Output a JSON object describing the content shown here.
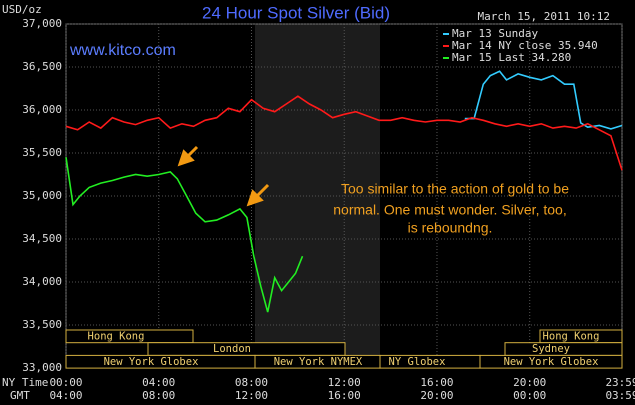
{
  "chart_data": {
    "type": "line",
    "title": "24 Hour Spot Silver (Bid)",
    "y_unit": "USD/oz",
    "timestamp": "March 15, 2011 10:12",
    "site": "www.kitco.com",
    "annotation": [
      "Too similar to the action of gold to be",
      "normal. One must wonder. Silver, too,",
      "is reboundng."
    ],
    "x_label": "NY Time",
    "x2_label": "GMT",
    "xlim": [
      0,
      23.98
    ],
    "xticks": [
      {
        "value": 0,
        "label": "00:00"
      },
      {
        "value": 4,
        "label": "04:00"
      },
      {
        "value": 8,
        "label": "08:00"
      },
      {
        "value": 12,
        "label": "12:00"
      },
      {
        "value": 16,
        "label": "16:00"
      },
      {
        "value": 20,
        "label": "20:00"
      },
      {
        "value": 23.98,
        "label": "23:59"
      }
    ],
    "x2ticks": [
      "04:00",
      "08:00",
      "12:00",
      "16:00",
      "20:00",
      "00:00",
      "03:59"
    ],
    "ylim": [
      33000,
      37000
    ],
    "yticks": [
      {
        "value": 33000,
        "label": "33,000"
      },
      {
        "value": 33500,
        "label": "33,500"
      },
      {
        "value": 34000,
        "label": "34,000"
      },
      {
        "value": 34500,
        "label": "34,500"
      },
      {
        "value": 35000,
        "label": "35,000"
      },
      {
        "value": 35500,
        "label": "35,500"
      },
      {
        "value": 36000,
        "label": "36,000"
      },
      {
        "value": 36500,
        "label": "36,500"
      },
      {
        "value": 37000,
        "label": "37,000"
      }
    ],
    "grid": true,
    "sessions": [
      "Hong Kong",
      "London",
      "New York Globex",
      "New York NYMEX",
      "NY Globex",
      "Hong Kong",
      "Sydney",
      "New York Globex"
    ],
    "series": [
      {
        "name": "Mar 13 Sunday",
        "color": "#33ccff",
        "x": [
          17.2,
          17.6,
          18,
          18.3,
          18.7,
          19,
          19.5,
          20,
          20.5,
          21,
          21.5,
          21.9,
          22.2,
          22.5,
          23,
          23.5,
          23.98
        ],
        "values": [
          35900,
          35900,
          36300,
          36400,
          36450,
          36350,
          36420,
          36380,
          36350,
          36400,
          36300,
          36300,
          35850,
          35800,
          35820,
          35780,
          35820
        ]
      },
      {
        "name": "Mar 14 NY close 35.940",
        "color": "#ff1a1a",
        "x": [
          0,
          0.5,
          1,
          1.5,
          2,
          2.5,
          3,
          3.5,
          4,
          4.5,
          5,
          5.5,
          6,
          6.5,
          7,
          7.5,
          8,
          8.5,
          9,
          9.5,
          10,
          10.5,
          11,
          11.5,
          12,
          12.5,
          13,
          13.5,
          14,
          14.5,
          15,
          15.5,
          16,
          16.5,
          17,
          17.5,
          18,
          18.5,
          19,
          19.5,
          20,
          20.5,
          21,
          21.5,
          22,
          22.5,
          23,
          23.5,
          23.98
        ],
        "values": [
          35810,
          35770,
          35860,
          35790,
          35910,
          35860,
          35830,
          35880,
          35910,
          35790,
          35840,
          35810,
          35880,
          35910,
          36020,
          35980,
          36120,
          36020,
          35980,
          36070,
          36160,
          36070,
          36000,
          35910,
          35950,
          35980,
          35930,
          35880,
          35880,
          35910,
          35880,
          35860,
          35880,
          35880,
          35860,
          35910,
          35880,
          35840,
          35810,
          35840,
          35810,
          35840,
          35790,
          35810,
          35790,
          35840,
          35770,
          35700,
          35300
        ]
      },
      {
        "name": "Mar 15 Last 34.280",
        "color": "#22ee22",
        "x": [
          0,
          0.3,
          0.6,
          1,
          1.5,
          2,
          2.5,
          3,
          3.5,
          4,
          4.5,
          4.8,
          5.2,
          5.6,
          6,
          6.5,
          7,
          7.5,
          7.8,
          8.1,
          8.4,
          8.7,
          9,
          9.3,
          9.6,
          9.9,
          10.2
        ],
        "values": [
          35450,
          34900,
          35000,
          35100,
          35150,
          35180,
          35220,
          35250,
          35230,
          35250,
          35280,
          35200,
          35000,
          34800,
          34700,
          34720,
          34780,
          34850,
          34750,
          34300,
          33950,
          33650,
          34050,
          33900,
          34000,
          34100,
          34300
        ]
      }
    ]
  }
}
